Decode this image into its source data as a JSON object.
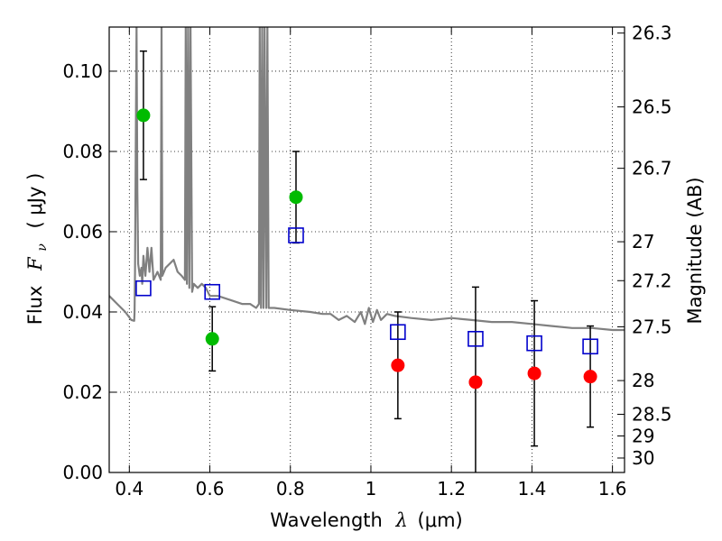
{
  "chart_data": {
    "type": "scatter",
    "title": "",
    "xlabel_parts": {
      "prefix": "Wavelength",
      "symbol": "λ",
      "unit": "(μm)"
    },
    "ylabel_parts": {
      "prefix": "Flux",
      "symbol": "F",
      "subscript": "ν",
      "unit": "( μJy )"
    },
    "ylabel_right": "Magnitude (AB)",
    "xlim": [
      0.35,
      1.63
    ],
    "ylim": [
      0.0,
      0.111
    ],
    "x_ticks": [
      0.4,
      0.6,
      0.8,
      1.0,
      1.2,
      1.4,
      1.6
    ],
    "x_tick_labels": [
      "0.4",
      "0.6",
      "0.8",
      "1",
      "1.2",
      "1.4",
      "1.6"
    ],
    "y_ticks": [
      0.0,
      0.02,
      0.04,
      0.06,
      0.08,
      0.1
    ],
    "y_tick_labels": [
      "0.00",
      "0.02",
      "0.04",
      "0.06",
      "0.08",
      "0.10"
    ],
    "right_ticks": [
      {
        "label": "26.3",
        "flux": 0.1095
      },
      {
        "label": "26.5",
        "flux": 0.0911
      },
      {
        "label": "26.7",
        "flux": 0.0758
      },
      {
        "label": "27",
        "flux": 0.0575
      },
      {
        "label": "27.2",
        "flux": 0.0478
      },
      {
        "label": "27.5",
        "flux": 0.0363
      },
      {
        "label": "28",
        "flux": 0.0229
      },
      {
        "label": "28.5",
        "flux": 0.0145
      },
      {
        "label": "29",
        "flux": 0.0091
      },
      {
        "label": "30",
        "flux": 0.0036
      }
    ],
    "grid": true,
    "colors": {
      "green": "#00bb00",
      "red": "#ff0000",
      "blue": "#0000cc",
      "model": "#808080",
      "errorbar": "#000000"
    },
    "series": [
      {
        "marker": "circle",
        "color": "green",
        "points": [
          {
            "x": 0.435,
            "y": 0.089,
            "err": 0.016
          },
          {
            "x": 0.606,
            "y": 0.0333,
            "err": 0.008
          },
          {
            "x": 0.814,
            "y": 0.0686,
            "err": 0.0114
          }
        ]
      },
      {
        "marker": "circle",
        "color": "red",
        "points": [
          {
            "x": 1.067,
            "y": 0.0267,
            "err": 0.0133
          },
          {
            "x": 1.26,
            "y": 0.0225,
            "err": 0.0237
          },
          {
            "x": 1.406,
            "y": 0.0247,
            "err": 0.0181
          },
          {
            "x": 1.545,
            "y": 0.0239,
            "err": 0.0126
          }
        ]
      },
      {
        "marker": "open-square",
        "color": "blue",
        "points": [
          {
            "x": 0.435,
            "y": 0.0459
          },
          {
            "x": 0.606,
            "y": 0.045
          },
          {
            "x": 0.814,
            "y": 0.0591
          },
          {
            "x": 1.067,
            "y": 0.035
          },
          {
            "x": 1.26,
            "y": 0.0333
          },
          {
            "x": 1.406,
            "y": 0.0322
          },
          {
            "x": 1.545,
            "y": 0.0314
          }
        ]
      }
    ],
    "model_spectrum": [
      [
        0.35,
        0.044
      ],
      [
        0.37,
        0.042
      ],
      [
        0.39,
        0.04
      ],
      [
        0.405,
        0.038
      ],
      [
        0.412,
        0.0378
      ],
      [
        0.413,
        0.04
      ],
      [
        0.414,
        0.05
      ],
      [
        0.416,
        0.08
      ],
      [
        0.418,
        0.111
      ],
      [
        0.42,
        0.07
      ],
      [
        0.422,
        0.052
      ],
      [
        0.426,
        0.049
      ],
      [
        0.43,
        0.051
      ],
      [
        0.432,
        0.047
      ],
      [
        0.435,
        0.054
      ],
      [
        0.44,
        0.049
      ],
      [
        0.445,
        0.056
      ],
      [
        0.45,
        0.05
      ],
      [
        0.455,
        0.056
      ],
      [
        0.46,
        0.048
      ],
      [
        0.47,
        0.05
      ],
      [
        0.478,
        0.048
      ],
      [
        0.48,
        0.111
      ],
      [
        0.482,
        0.049
      ],
      [
        0.49,
        0.051
      ],
      [
        0.5,
        0.052
      ],
      [
        0.51,
        0.053
      ],
      [
        0.52,
        0.05
      ],
      [
        0.53,
        0.049
      ],
      [
        0.538,
        0.048
      ],
      [
        0.54,
        0.111
      ],
      [
        0.543,
        0.047
      ],
      [
        0.546,
        0.111
      ],
      [
        0.549,
        0.046
      ],
      [
        0.552,
        0.111
      ],
      [
        0.556,
        0.045
      ],
      [
        0.56,
        0.047
      ],
      [
        0.57,
        0.046
      ],
      [
        0.58,
        0.047
      ],
      [
        0.59,
        0.046
      ],
      [
        0.6,
        0.044
      ],
      [
        0.62,
        0.044
      ],
      [
        0.65,
        0.043
      ],
      [
        0.68,
        0.042
      ],
      [
        0.7,
        0.042
      ],
      [
        0.715,
        0.041
      ],
      [
        0.722,
        0.042
      ],
      [
        0.724,
        0.111
      ],
      [
        0.727,
        0.041
      ],
      [
        0.73,
        0.111
      ],
      [
        0.733,
        0.041
      ],
      [
        0.736,
        0.111
      ],
      [
        0.74,
        0.041
      ],
      [
        0.743,
        0.111
      ],
      [
        0.746,
        0.041
      ],
      [
        0.76,
        0.041
      ],
      [
        0.8,
        0.0405
      ],
      [
        0.85,
        0.04
      ],
      [
        0.88,
        0.0395
      ],
      [
        0.9,
        0.0395
      ],
      [
        0.92,
        0.038
      ],
      [
        0.94,
        0.039
      ],
      [
        0.96,
        0.0375
      ],
      [
        0.975,
        0.04
      ],
      [
        0.985,
        0.037
      ],
      [
        0.995,
        0.041
      ],
      [
        1.005,
        0.0375
      ],
      [
        1.015,
        0.0405
      ],
      [
        1.025,
        0.038
      ],
      [
        1.04,
        0.0395
      ],
      [
        1.06,
        0.039
      ],
      [
        1.1,
        0.0385
      ],
      [
        1.15,
        0.038
      ],
      [
        1.2,
        0.0385
      ],
      [
        1.25,
        0.038
      ],
      [
        1.3,
        0.0375
      ],
      [
        1.35,
        0.0375
      ],
      [
        1.4,
        0.037
      ],
      [
        1.45,
        0.0365
      ],
      [
        1.5,
        0.036
      ],
      [
        1.55,
        0.036
      ],
      [
        1.6,
        0.0355
      ],
      [
        1.63,
        0.0355
      ]
    ]
  }
}
